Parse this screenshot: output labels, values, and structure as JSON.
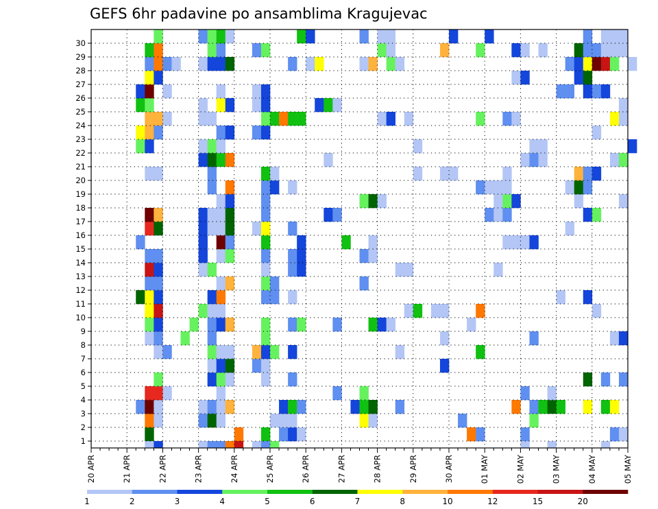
{
  "chart_data": {
    "type": "heatmap",
    "title": "GEFS 6hr padavine po ansamblima Kragujevac",
    "xlabel": "",
    "ylabel": "",
    "x_ticks": [
      "20 APR",
      "21 APR",
      "22 APR",
      "23 APR",
      "24 APR",
      "25 APR",
      "26 APR",
      "27 APR",
      "28 APR",
      "29 APR",
      "30 APR",
      "01 MAY",
      "02 MAY",
      "03 MAY",
      "04 MAY",
      "05 MAY"
    ],
    "y_ticks": [
      "1",
      "2",
      "3",
      "4",
      "5",
      "6",
      "7",
      "8",
      "9",
      "10",
      "11",
      "12",
      "13",
      "14",
      "15",
      "16",
      "17",
      "18",
      "19",
      "20",
      "21",
      "22",
      "23",
      "24",
      "25",
      "26",
      "27",
      "28",
      "29",
      "30"
    ],
    "steps_per_day": 4,
    "grid": true,
    "legend": "bottom colorbar",
    "colorbar": {
      "labels": [
        "1",
        "2",
        "3",
        "4",
        "5",
        "6",
        "7",
        "8",
        "10",
        "12",
        "15",
        "20"
      ],
      "colors": [
        "#b3c6f5",
        "#5f8ff0",
        "#1446dc",
        "#66f25f",
        "#11c111",
        "#006400",
        "#ffff00",
        "#ffb23c",
        "#ff7800",
        "#e8281e",
        "#c81414",
        "#6e0000"
      ]
    },
    "cells": [
      [
        1,
        6,
        6
      ],
      [
        1,
        16,
        9
      ],
      [
        1,
        19,
        5
      ],
      [
        1,
        21,
        2
      ],
      [
        1,
        22,
        3
      ],
      [
        1,
        23,
        1
      ],
      [
        1,
        42,
        9
      ],
      [
        1,
        43,
        2
      ],
      [
        1,
        48,
        2
      ],
      [
        1,
        58,
        2
      ],
      [
        1,
        59,
        1
      ],
      [
        2,
        6,
        9
      ],
      [
        2,
        7,
        1
      ],
      [
        2,
        12,
        2
      ],
      [
        2,
        13,
        6
      ],
      [
        2,
        14,
        1
      ],
      [
        2,
        20,
        1
      ],
      [
        2,
        21,
        1
      ],
      [
        2,
        22,
        1
      ],
      [
        2,
        30,
        7
      ],
      [
        2,
        31,
        1
      ],
      [
        2,
        41,
        2
      ],
      [
        2,
        49,
        4
      ],
      [
        3,
        5,
        2
      ],
      [
        3,
        6,
        12
      ],
      [
        3,
        7,
        1
      ],
      [
        3,
        12,
        1
      ],
      [
        3,
        13,
        2
      ],
      [
        3,
        14,
        1
      ],
      [
        3,
        15,
        8
      ],
      [
        3,
        21,
        3
      ],
      [
        3,
        22,
        5
      ],
      [
        3,
        23,
        2
      ],
      [
        3,
        29,
        3
      ],
      [
        3,
        30,
        5
      ],
      [
        3,
        31,
        6
      ],
      [
        3,
        34,
        2
      ],
      [
        3,
        47,
        9
      ],
      [
        3,
        49,
        2
      ],
      [
        3,
        50,
        5
      ],
      [
        3,
        51,
        6
      ],
      [
        3,
        52,
        5
      ],
      [
        3,
        55,
        7
      ],
      [
        3,
        57,
        5
      ],
      [
        3,
        58,
        7
      ],
      [
        4,
        6,
        10
      ],
      [
        4,
        7,
        10
      ],
      [
        4,
        8,
        1
      ],
      [
        4,
        14,
        1
      ],
      [
        4,
        27,
        2
      ],
      [
        4,
        30,
        4
      ],
      [
        4,
        48,
        2
      ],
      [
        4,
        51,
        1
      ],
      [
        5,
        7,
        4
      ],
      [
        5,
        13,
        3
      ],
      [
        5,
        14,
        4
      ],
      [
        5,
        15,
        1
      ],
      [
        5,
        19,
        1
      ],
      [
        5,
        22,
        2
      ],
      [
        5,
        55,
        6
      ],
      [
        5,
        57,
        2
      ],
      [
        5,
        59,
        2
      ],
      [
        6,
        13,
        1
      ],
      [
        6,
        14,
        3
      ],
      [
        6,
        15,
        6
      ],
      [
        6,
        18,
        2
      ],
      [
        6,
        19,
        1
      ],
      [
        6,
        39,
        3
      ],
      [
        7,
        7,
        1
      ],
      [
        7,
        8,
        2
      ],
      [
        7,
        13,
        4
      ],
      [
        7,
        14,
        1
      ],
      [
        7,
        15,
        1
      ],
      [
        7,
        18,
        8
      ],
      [
        7,
        19,
        3
      ],
      [
        7,
        20,
        4
      ],
      [
        7,
        22,
        3
      ],
      [
        7,
        34,
        1
      ],
      [
        7,
        43,
        5
      ],
      [
        8,
        6,
        1
      ],
      [
        8,
        7,
        2
      ],
      [
        8,
        10,
        4
      ],
      [
        8,
        13,
        2
      ],
      [
        8,
        19,
        4
      ],
      [
        8,
        39,
        1
      ],
      [
        8,
        49,
        2
      ],
      [
        8,
        58,
        1
      ],
      [
        8,
        59,
        3
      ],
      [
        9,
        6,
        4
      ],
      [
        9,
        7,
        3
      ],
      [
        9,
        11,
        4
      ],
      [
        9,
        13,
        2
      ],
      [
        9,
        14,
        3
      ],
      [
        9,
        15,
        8
      ],
      [
        9,
        19,
        4
      ],
      [
        9,
        22,
        2
      ],
      [
        9,
        23,
        4
      ],
      [
        9,
        27,
        2
      ],
      [
        9,
        31,
        5
      ],
      [
        9,
        32,
        3
      ],
      [
        9,
        33,
        1
      ],
      [
        9,
        42,
        1
      ],
      [
        10,
        6,
        7
      ],
      [
        10,
        7,
        11
      ],
      [
        10,
        12,
        4
      ],
      [
        10,
        13,
        1
      ],
      [
        10,
        14,
        1
      ],
      [
        10,
        35,
        1
      ],
      [
        10,
        36,
        5
      ],
      [
        10,
        38,
        1
      ],
      [
        10,
        39,
        1
      ],
      [
        10,
        43,
        9
      ],
      [
        10,
        56,
        1
      ],
      [
        11,
        5,
        6
      ],
      [
        11,
        6,
        7
      ],
      [
        11,
        7,
        3
      ],
      [
        11,
        13,
        3
      ],
      [
        11,
        14,
        9
      ],
      [
        11,
        19,
        2
      ],
      [
        11,
        20,
        2
      ],
      [
        11,
        22,
        1
      ],
      [
        11,
        52,
        1
      ],
      [
        11,
        55,
        3
      ],
      [
        12,
        6,
        2
      ],
      [
        12,
        7,
        2
      ],
      [
        12,
        14,
        1
      ],
      [
        12,
        15,
        8
      ],
      [
        12,
        19,
        4
      ],
      [
        12,
        20,
        2
      ],
      [
        12,
        30,
        2
      ],
      [
        13,
        6,
        11
      ],
      [
        13,
        7,
        3
      ],
      [
        13,
        12,
        1
      ],
      [
        13,
        13,
        4
      ],
      [
        13,
        19,
        1
      ],
      [
        13,
        22,
        2
      ],
      [
        13,
        23,
        3
      ],
      [
        13,
        34,
        1
      ],
      [
        13,
        35,
        1
      ],
      [
        13,
        45,
        1
      ],
      [
        14,
        6,
        2
      ],
      [
        14,
        7,
        2
      ],
      [
        14,
        12,
        3
      ],
      [
        14,
        14,
        1
      ],
      [
        14,
        15,
        4
      ],
      [
        14,
        19,
        2
      ],
      [
        14,
        22,
        2
      ],
      [
        14,
        23,
        3
      ],
      [
        14,
        30,
        2
      ],
      [
        14,
        31,
        1
      ],
      [
        15,
        5,
        2
      ],
      [
        15,
        12,
        3
      ],
      [
        15,
        14,
        12
      ],
      [
        15,
        15,
        2
      ],
      [
        15,
        19,
        5
      ],
      [
        15,
        23,
        3
      ],
      [
        15,
        28,
        5
      ],
      [
        15,
        31,
        1
      ],
      [
        15,
        46,
        1
      ],
      [
        15,
        47,
        1
      ],
      [
        15,
        48,
        1
      ],
      [
        15,
        49,
        3
      ],
      [
        16,
        6,
        10
      ],
      [
        16,
        7,
        6
      ],
      [
        16,
        12,
        3
      ],
      [
        16,
        13,
        1
      ],
      [
        16,
        14,
        1
      ],
      [
        16,
        15,
        6
      ],
      [
        16,
        18,
        1
      ],
      [
        16,
        19,
        7
      ],
      [
        16,
        22,
        2
      ],
      [
        16,
        53,
        1
      ],
      [
        17,
        6,
        12
      ],
      [
        17,
        7,
        8
      ],
      [
        17,
        12,
        3
      ],
      [
        17,
        13,
        1
      ],
      [
        17,
        14,
        1
      ],
      [
        17,
        15,
        6
      ],
      [
        17,
        19,
        2
      ],
      [
        17,
        26,
        3
      ],
      [
        17,
        27,
        2
      ],
      [
        17,
        44,
        2
      ],
      [
        17,
        45,
        1
      ],
      [
        17,
        46,
        2
      ],
      [
        17,
        55,
        3
      ],
      [
        17,
        56,
        4
      ],
      [
        18,
        14,
        1
      ],
      [
        18,
        15,
        3
      ],
      [
        18,
        19,
        2
      ],
      [
        18,
        30,
        4
      ],
      [
        18,
        31,
        6
      ],
      [
        18,
        32,
        1
      ],
      [
        18,
        45,
        1
      ],
      [
        18,
        46,
        4
      ],
      [
        18,
        47,
        3
      ],
      [
        18,
        54,
        1
      ],
      [
        18,
        59,
        1
      ],
      [
        19,
        13,
        2
      ],
      [
        19,
        15,
        9
      ],
      [
        19,
        19,
        2
      ],
      [
        19,
        20,
        3
      ],
      [
        19,
        22,
        1
      ],
      [
        19,
        43,
        2
      ],
      [
        19,
        44,
        1
      ],
      [
        19,
        45,
        1
      ],
      [
        19,
        46,
        1
      ],
      [
        19,
        53,
        1
      ],
      [
        19,
        54,
        6
      ],
      [
        19,
        55,
        2
      ],
      [
        20,
        6,
        1
      ],
      [
        20,
        7,
        1
      ],
      [
        20,
        13,
        2
      ],
      [
        20,
        19,
        5
      ],
      [
        20,
        20,
        1
      ],
      [
        20,
        36,
        1
      ],
      [
        20,
        39,
        1
      ],
      [
        20,
        40,
        1
      ],
      [
        20,
        46,
        1
      ],
      [
        20,
        54,
        8
      ],
      [
        20,
        55,
        2
      ],
      [
        20,
        56,
        3
      ],
      [
        21,
        12,
        3
      ],
      [
        21,
        13,
        6
      ],
      [
        21,
        14,
        5
      ],
      [
        21,
        15,
        9
      ],
      [
        21,
        26,
        1
      ],
      [
        21,
        48,
        1
      ],
      [
        21,
        49,
        2
      ],
      [
        21,
        50,
        1
      ],
      [
        21,
        58,
        1
      ],
      [
        21,
        59,
        4
      ],
      [
        22,
        5,
        4
      ],
      [
        22,
        6,
        3
      ],
      [
        22,
        12,
        1
      ],
      [
        22,
        13,
        4
      ],
      [
        22,
        14,
        1
      ],
      [
        22,
        36,
        1
      ],
      [
        22,
        49,
        1
      ],
      [
        22,
        50,
        1
      ],
      [
        22,
        60,
        3
      ],
      [
        23,
        5,
        7
      ],
      [
        23,
        6,
        8
      ],
      [
        23,
        7,
        2
      ],
      [
        23,
        14,
        2
      ],
      [
        23,
        15,
        3
      ],
      [
        23,
        18,
        2
      ],
      [
        23,
        19,
        3
      ],
      [
        23,
        56,
        1
      ],
      [
        24,
        6,
        8
      ],
      [
        24,
        7,
        8
      ],
      [
        24,
        8,
        1
      ],
      [
        24,
        12,
        1
      ],
      [
        24,
        13,
        1
      ],
      [
        24,
        19,
        4
      ],
      [
        24,
        20,
        5
      ],
      [
        24,
        21,
        9
      ],
      [
        24,
        22,
        5
      ],
      [
        24,
        23,
        5
      ],
      [
        24,
        32,
        1
      ],
      [
        24,
        33,
        3
      ],
      [
        24,
        35,
        1
      ],
      [
        24,
        43,
        4
      ],
      [
        24,
        46,
        2
      ],
      [
        24,
        47,
        1
      ],
      [
        24,
        58,
        7
      ],
      [
        24,
        59,
        1
      ],
      [
        25,
        5,
        5
      ],
      [
        25,
        6,
        4
      ],
      [
        25,
        12,
        1
      ],
      [
        25,
        14,
        7
      ],
      [
        25,
        15,
        3
      ],
      [
        25,
        18,
        1
      ],
      [
        25,
        19,
        3
      ],
      [
        25,
        25,
        3
      ],
      [
        25,
        26,
        5
      ],
      [
        25,
        27,
        1
      ],
      [
        25,
        59,
        1
      ],
      [
        26,
        5,
        3
      ],
      [
        26,
        6,
        12
      ],
      [
        26,
        8,
        1
      ],
      [
        26,
        14,
        1
      ],
      [
        26,
        18,
        1
      ],
      [
        26,
        19,
        3
      ],
      [
        26,
        52,
        2
      ],
      [
        26,
        53,
        2
      ],
      [
        26,
        55,
        3
      ],
      [
        26,
        56,
        2
      ],
      [
        26,
        57,
        3
      ],
      [
        27,
        6,
        7
      ],
      [
        27,
        7,
        3
      ],
      [
        27,
        47,
        1
      ],
      [
        27,
        48,
        3
      ],
      [
        27,
        54,
        3
      ],
      [
        27,
        55,
        6
      ],
      [
        28,
        6,
        2
      ],
      [
        28,
        7,
        9
      ],
      [
        28,
        8,
        2
      ],
      [
        28,
        9,
        1
      ],
      [
        28,
        12,
        1
      ],
      [
        28,
        13,
        3
      ],
      [
        28,
        14,
        3
      ],
      [
        28,
        15,
        6
      ],
      [
        28,
        22,
        2
      ],
      [
        28,
        24,
        1
      ],
      [
        28,
        25,
        7
      ],
      [
        28,
        30,
        1
      ],
      [
        28,
        31,
        8
      ],
      [
        28,
        33,
        4
      ],
      [
        28,
        34,
        1
      ],
      [
        28,
        53,
        2
      ],
      [
        28,
        54,
        3
      ],
      [
        28,
        55,
        7
      ],
      [
        28,
        56,
        12
      ],
      [
        28,
        57,
        11
      ],
      [
        28,
        58,
        4
      ],
      [
        28,
        60,
        1
      ],
      [
        29,
        6,
        5
      ],
      [
        29,
        7,
        9
      ],
      [
        29,
        13,
        4
      ],
      [
        29,
        14,
        2
      ],
      [
        29,
        18,
        2
      ],
      [
        29,
        19,
        4
      ],
      [
        29,
        32,
        4
      ],
      [
        29,
        33,
        1
      ],
      [
        29,
        39,
        8
      ],
      [
        29,
        43,
        4
      ],
      [
        29,
        47,
        3
      ],
      [
        29,
        48,
        1
      ],
      [
        29,
        50,
        1
      ],
      [
        29,
        54,
        6
      ],
      [
        29,
        55,
        2
      ],
      [
        29,
        56,
        2
      ],
      [
        29,
        57,
        1
      ],
      [
        29,
        58,
        1
      ],
      [
        29,
        59,
        1
      ],
      [
        30,
        7,
        4
      ],
      [
        30,
        12,
        2
      ],
      [
        30,
        13,
        4
      ],
      [
        30,
        14,
        5
      ],
      [
        30,
        15,
        1
      ],
      [
        30,
        23,
        5
      ],
      [
        30,
        24,
        3
      ],
      [
        30,
        30,
        2
      ],
      [
        30,
        32,
        1
      ],
      [
        30,
        33,
        1
      ],
      [
        30,
        40,
        3
      ],
      [
        30,
        44,
        3
      ],
      [
        30,
        55,
        2
      ],
      [
        30,
        57,
        1
      ],
      [
        30,
        58,
        1
      ],
      [
        30,
        59,
        1
      ],
      [
        0,
        6,
        1
      ],
      [
        0,
        7,
        3
      ],
      [
        0,
        12,
        1
      ],
      [
        0,
        13,
        2
      ],
      [
        0,
        14,
        2
      ],
      [
        0,
        15,
        9
      ],
      [
        0,
        16,
        11
      ],
      [
        0,
        18,
        1
      ],
      [
        0,
        19,
        2
      ],
      [
        0,
        20,
        4
      ],
      [
        0,
        48,
        1
      ],
      [
        0,
        51,
        1
      ],
      [
        0,
        57,
        1
      ]
    ]
  }
}
